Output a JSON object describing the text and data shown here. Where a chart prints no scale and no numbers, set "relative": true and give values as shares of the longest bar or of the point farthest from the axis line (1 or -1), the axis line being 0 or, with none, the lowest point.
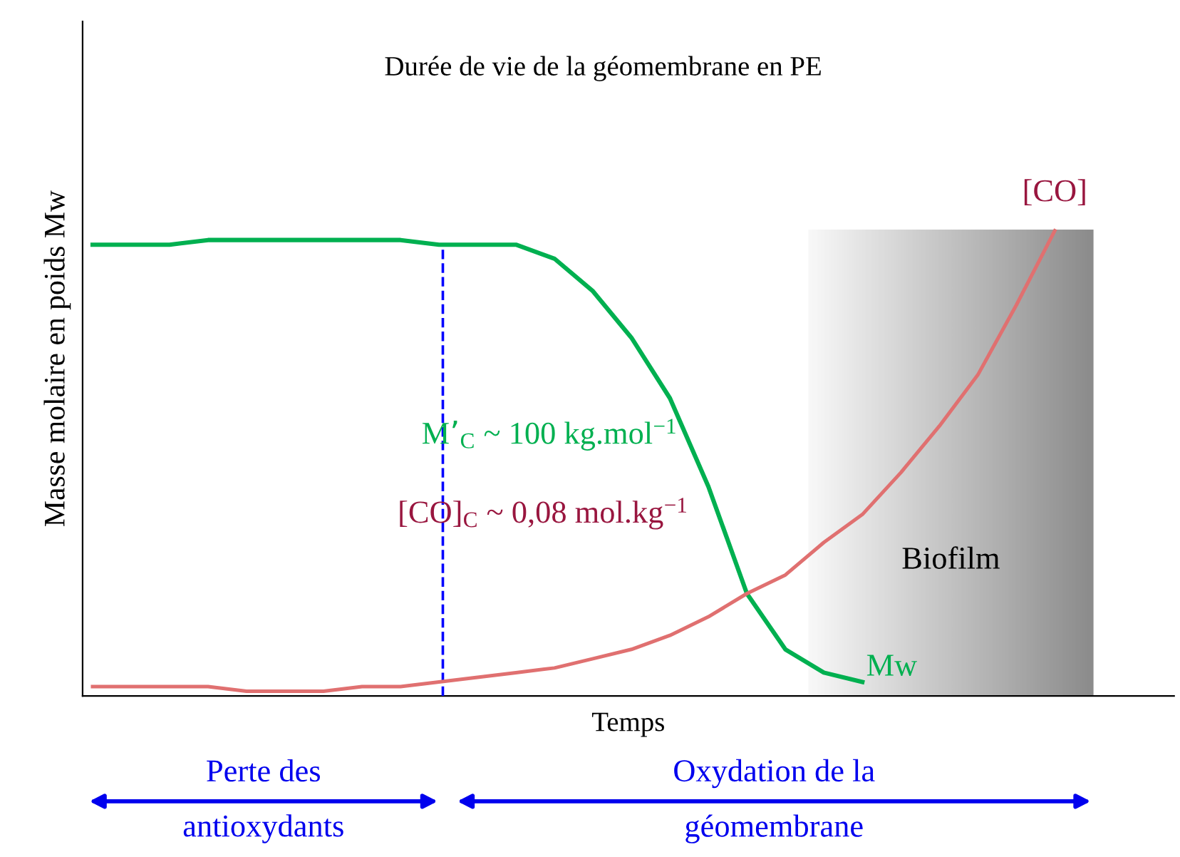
{
  "chart_data": {
    "type": "line",
    "relative": true,
    "title": "Durée de vie de la géomembrane en PE",
    "xlabel": "Temps",
    "ylabel": "Masse molaire en poids Mw",
    "categories": [
      null,
      null,
      null,
      null,
      null,
      null,
      null,
      null,
      null,
      null,
      null,
      null,
      null,
      null,
      null,
      null,
      null,
      null,
      null,
      null,
      null,
      null,
      null,
      null,
      null,
      null
    ],
    "series": [
      {
        "name": "Mw",
        "color": "#00b050",
        "values": [
          0.97,
          0.97,
          0.97,
          0.98,
          0.98,
          0.98,
          0.98,
          0.98,
          0.98,
          0.97,
          0.97,
          0.97,
          0.94,
          0.87,
          0.77,
          0.64,
          0.45,
          0.22,
          0.1,
          0.05,
          0.03,
          null,
          null,
          null,
          null,
          null
        ]
      },
      {
        "name": "[CO]",
        "color": "#e07070",
        "values": [
          0.02,
          0.02,
          0.02,
          0.02,
          0.01,
          0.01,
          0.01,
          0.02,
          0.02,
          0.03,
          0.04,
          0.05,
          0.06,
          0.08,
          0.1,
          0.13,
          0.17,
          0.22,
          0.26,
          0.33,
          0.39,
          0.48,
          0.58,
          0.69,
          0.84,
          1.0
        ]
      }
    ],
    "annotations": [
      "M’$_{C}$ ~ 100 kg.mol$^{−1}$",
      "[CO]$_{C}$ ~ 0,08 mol.kg$^{−1}$",
      "Perte des\nantioxydants",
      "Oxydation de la\ngéomembrane",
      "Biofilm"
    ],
    "marker": "none",
    "line_style": "solid"
  }
}
